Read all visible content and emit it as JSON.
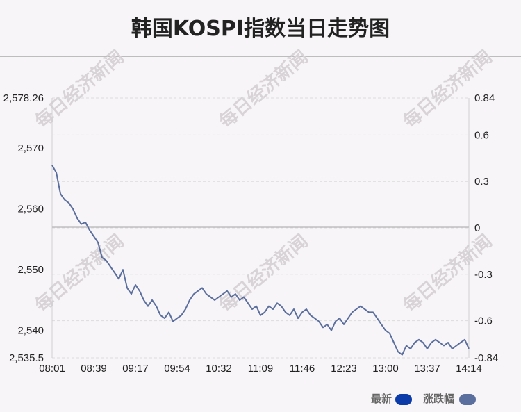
{
  "title": "韩国KOSPI指数当日走势图",
  "watermark": "每日经济新闻",
  "legend": {
    "latest_label": "最新",
    "change_label": "涨跌幅",
    "latest_color": "#0a3ba9",
    "change_color": "#5a6f9e"
  },
  "chart_data": {
    "type": "line",
    "x_ticks": [
      "08:01",
      "08:39",
      "09:17",
      "09:54",
      "10:32",
      "11:09",
      "11:46",
      "12:23",
      "13:00",
      "13:37",
      "14:14"
    ],
    "y_left_ticks": [
      "2,578.26",
      "2,570",
      "2,560",
      "2,550",
      "2,540",
      "2,535.5"
    ],
    "y_left_values": [
      2578.26,
      2570,
      2560,
      2550,
      2540,
      2535.5
    ],
    "y_right_ticks": [
      "0.84",
      "0.6",
      "0.3",
      "0",
      "-0.3",
      "-0.6",
      "-0.84"
    ],
    "y_right_values": [
      0.84,
      0.6,
      0.3,
      0,
      -0.3,
      -0.6,
      -0.84
    ],
    "ylim_left": [
      2535.5,
      2578.26
    ],
    "ylim_right": [
      -0.84,
      0.84
    ],
    "baseline": 2557.0,
    "grid": true,
    "series": [
      {
        "name": "最新",
        "color": "#5a6f9e",
        "x": [
          0,
          1,
          2,
          3,
          4,
          5,
          6,
          7,
          8,
          9,
          10,
          11,
          12,
          13,
          14,
          15,
          16,
          17,
          18,
          19,
          20,
          21,
          22,
          23,
          24,
          25,
          26,
          27,
          28,
          29,
          30,
          31,
          32,
          33,
          34,
          35,
          36,
          37,
          38,
          39,
          40,
          41,
          42,
          43,
          44,
          45,
          46,
          47,
          48,
          49,
          50,
          51,
          52,
          53,
          54,
          55,
          56,
          57,
          58,
          59,
          60,
          61,
          62,
          63,
          64,
          65,
          66,
          67,
          68,
          69,
          70,
          71,
          72,
          73,
          74,
          75,
          76,
          77,
          78,
          79,
          80,
          81,
          82,
          83,
          84,
          85,
          86,
          87,
          88,
          89,
          90,
          91,
          92,
          93,
          94,
          95,
          96,
          97,
          98,
          99,
          100
        ],
        "values": [
          2567.2,
          2566.0,
          2562.5,
          2561.5,
          2561.0,
          2560.0,
          2558.5,
          2557.5,
          2557.8,
          2556.5,
          2555.5,
          2554.5,
          2552.0,
          2551.5,
          2550.5,
          2549.5,
          2548.5,
          2550.0,
          2547.0,
          2546.0,
          2547.5,
          2546.5,
          2545.0,
          2544.0,
          2545.0,
          2544.0,
          2542.5,
          2542.0,
          2543.0,
          2541.5,
          2542.0,
          2542.5,
          2543.5,
          2545.0,
          2546.0,
          2546.5,
          2547.0,
          2546.0,
          2545.5,
          2545.0,
          2545.5,
          2546.0,
          2546.5,
          2545.5,
          2546.0,
          2545.0,
          2545.5,
          2544.5,
          2543.5,
          2544.0,
          2542.5,
          2543.0,
          2544.0,
          2543.5,
          2544.5,
          2544.0,
          2543.0,
          2542.5,
          2543.5,
          2542.0,
          2543.0,
          2543.5,
          2542.5,
          2542.0,
          2541.5,
          2540.5,
          2541.0,
          2540.0,
          2541.5,
          2542.0,
          2541.0,
          2542.0,
          2543.0,
          2543.5,
          2544.0,
          2543.5,
          2543.0,
          2543.0,
          2542.0,
          2541.0,
          2540.0,
          2539.5,
          2538.0,
          2536.5,
          2536.0,
          2537.5,
          2537.0,
          2538.0,
          2538.5,
          2538.0,
          2537.0,
          2538.0,
          2538.5,
          2538.0,
          2537.5,
          2538.0,
          2537.0,
          2537.5,
          2538.0,
          2538.5,
          2537.0
        ]
      }
    ]
  }
}
